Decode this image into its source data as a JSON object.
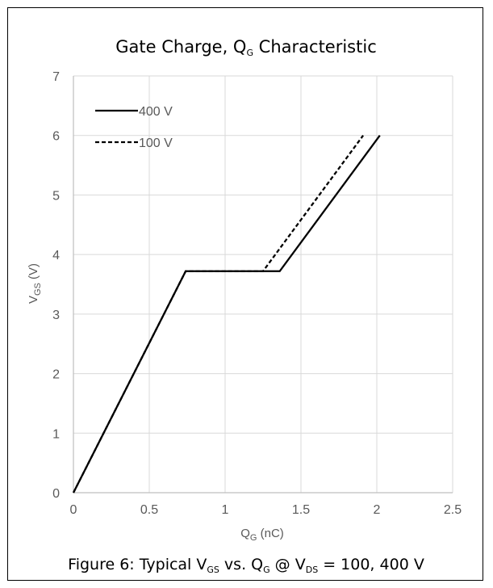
{
  "chart_data": {
    "type": "line",
    "title": {
      "main": "Gate Charge, Q",
      "main_sub": "G",
      "rest": " Characteristic"
    },
    "xlabel": {
      "main": "Q",
      "sub": "G",
      "rest": " (nC)"
    },
    "ylabel": {
      "main": "V",
      "sub": "GS",
      "rest": " (V)"
    },
    "xlim": [
      0,
      2.5
    ],
    "ylim": [
      0,
      7
    ],
    "x_ticks": [
      0,
      0.5,
      1,
      1.5,
      2,
      2.5
    ],
    "x_tick_labels": [
      "0",
      "0.5",
      "1",
      "1.5",
      "2",
      "2.5"
    ],
    "y_ticks": [
      0,
      1,
      2,
      3,
      4,
      5,
      6,
      7
    ],
    "y_tick_labels": [
      "0",
      "1",
      "2",
      "3",
      "4",
      "5",
      "6",
      "7"
    ],
    "grid": true,
    "legend_position": "top-left",
    "series": [
      {
        "name": "400 V",
        "style": "solid",
        "color": "#000000",
        "x": [
          0,
          0.74,
          1.36,
          2.02
        ],
        "y": [
          0,
          3.72,
          3.72,
          6.0
        ]
      },
      {
        "name": "100 V",
        "style": "dashed",
        "color": "#000000",
        "x": [
          0,
          0.74,
          1.25,
          1.91
        ],
        "y": [
          0,
          3.72,
          3.72,
          6.0
        ]
      }
    ]
  },
  "caption": {
    "parts": [
      {
        "t": "Figure 6: Typical V",
        "sub": false
      },
      {
        "t": "GS",
        "sub": true
      },
      {
        "t": " vs. Q",
        "sub": false
      },
      {
        "t": "G",
        "sub": true
      },
      {
        "t": " @ V",
        "sub": false
      },
      {
        "t": "DS",
        "sub": true
      },
      {
        "t": " = 100, 400 V",
        "sub": false
      }
    ]
  },
  "colors": {
    "grid": "#d9d9d9",
    "axis": "#bfbfbf",
    "tick_text": "#595959",
    "series": "#000000"
  }
}
